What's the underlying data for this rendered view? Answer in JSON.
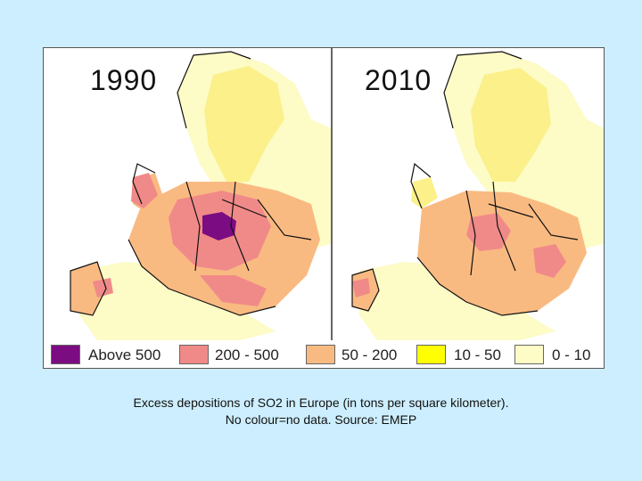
{
  "panels": [
    {
      "year": "1990"
    },
    {
      "year": "2010"
    }
  ],
  "legend": [
    {
      "label": "Above 500",
      "color": "#7b0c82"
    },
    {
      "label": "200 - 500",
      "color": "#f08a88"
    },
    {
      "label": "50 - 200",
      "color": "#f9ba82"
    },
    {
      "label": "10 - 50",
      "color": "#ffff00"
    },
    {
      "label": "0 - 10",
      "color": "#fdfbc6"
    }
  ],
  "caption": {
    "line1": "Excess depositions of SO2 in Europe (in tons per square kilometer).",
    "line2": "No colour=no data. Source: EMEP"
  }
}
